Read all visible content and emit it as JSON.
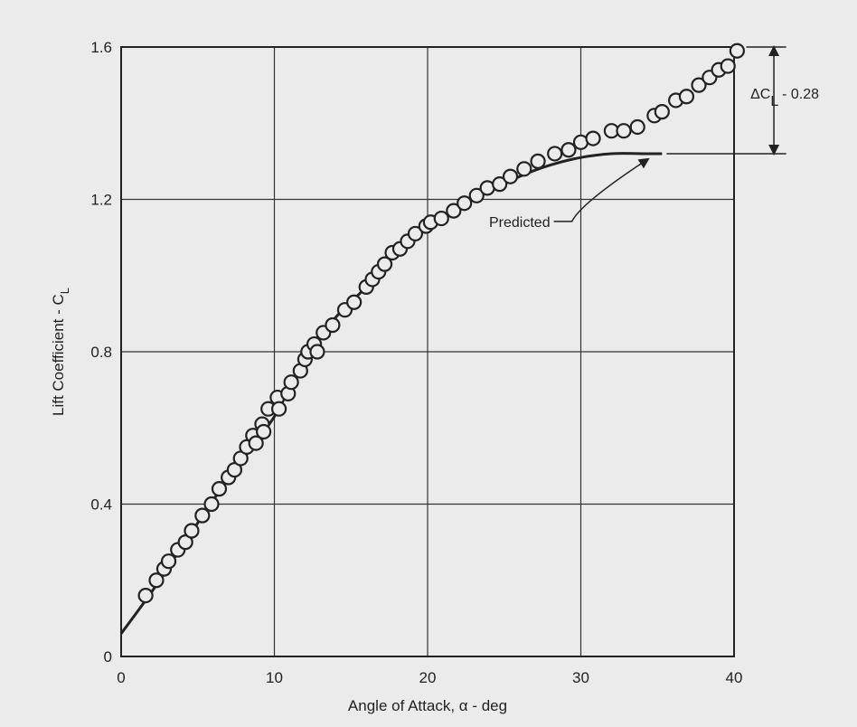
{
  "chart_data": {
    "type": "scatter",
    "title": "",
    "xlabel": "Angle of Attack, α - deg",
    "ylabel_main": "Lift Coefficient - C",
    "ylabel_sub": "L",
    "xlim": [
      0,
      40
    ],
    "ylim": [
      0,
      1.6
    ],
    "x_ticks": [
      0,
      10,
      20,
      30,
      40
    ],
    "x_tick_labels": [
      "0",
      "10",
      "20",
      "30",
      "40"
    ],
    "y_ticks": [
      0,
      0.4,
      0.8,
      1.2,
      1.6
    ],
    "y_tick_labels": [
      "0",
      "0.4",
      "0.8",
      "1.2",
      "1.6"
    ],
    "grid": true,
    "series": [
      {
        "marker": "open-circle",
        "color": "#222222",
        "points": [
          [
            1.6,
            0.16
          ],
          [
            2.3,
            0.2
          ],
          [
            2.8,
            0.23
          ],
          [
            3.1,
            0.25
          ],
          [
            3.7,
            0.28
          ],
          [
            4.2,
            0.3
          ],
          [
            4.6,
            0.33
          ],
          [
            5.3,
            0.37
          ],
          [
            5.9,
            0.4
          ],
          [
            6.4,
            0.44
          ],
          [
            7.0,
            0.47
          ],
          [
            7.4,
            0.49
          ],
          [
            7.8,
            0.52
          ],
          [
            8.2,
            0.55
          ],
          [
            8.6,
            0.58
          ],
          [
            8.8,
            0.56
          ],
          [
            9.2,
            0.61
          ],
          [
            9.3,
            0.59
          ],
          [
            9.6,
            0.65
          ],
          [
            10.2,
            0.68
          ],
          [
            10.3,
            0.65
          ],
          [
            10.9,
            0.69
          ],
          [
            11.1,
            0.72
          ],
          [
            11.7,
            0.75
          ],
          [
            12.0,
            0.78
          ],
          [
            12.2,
            0.8
          ],
          [
            12.6,
            0.82
          ],
          [
            12.8,
            0.8
          ],
          [
            13.2,
            0.85
          ],
          [
            13.8,
            0.87
          ],
          [
            14.6,
            0.91
          ],
          [
            15.2,
            0.93
          ],
          [
            16.0,
            0.97
          ],
          [
            16.4,
            0.99
          ],
          [
            16.8,
            1.01
          ],
          [
            17.2,
            1.03
          ],
          [
            17.7,
            1.06
          ],
          [
            18.2,
            1.07
          ],
          [
            18.7,
            1.09
          ],
          [
            19.2,
            1.11
          ],
          [
            19.9,
            1.13
          ],
          [
            20.2,
            1.14
          ],
          [
            20.9,
            1.15
          ],
          [
            21.7,
            1.17
          ],
          [
            22.4,
            1.19
          ],
          [
            23.2,
            1.21
          ],
          [
            23.9,
            1.23
          ],
          [
            24.7,
            1.24
          ],
          [
            25.4,
            1.26
          ],
          [
            26.3,
            1.28
          ],
          [
            27.2,
            1.3
          ],
          [
            28.3,
            1.32
          ],
          [
            29.2,
            1.33
          ],
          [
            30.0,
            1.35
          ],
          [
            30.8,
            1.36
          ],
          [
            32.0,
            1.38
          ],
          [
            32.8,
            1.38
          ],
          [
            33.7,
            1.39
          ],
          [
            34.8,
            1.42
          ],
          [
            35.3,
            1.43
          ],
          [
            36.2,
            1.46
          ],
          [
            36.9,
            1.47
          ],
          [
            37.7,
            1.5
          ],
          [
            38.4,
            1.52
          ],
          [
            39.0,
            1.54
          ],
          [
            39.6,
            1.55
          ],
          [
            40.2,
            1.59
          ]
        ]
      }
    ],
    "predicted_curve": {
      "label": "Predicted",
      "x": [
        0,
        2,
        4,
        6,
        8,
        10,
        12,
        14,
        16,
        18,
        20,
        22,
        24,
        26,
        28,
        30,
        32,
        34,
        35.3
      ],
      "y": [
        0.06,
        0.17,
        0.29,
        0.41,
        0.52,
        0.63,
        0.78,
        0.89,
        0.97,
        1.06,
        1.13,
        1.18,
        1.22,
        1.26,
        1.29,
        1.31,
        1.32,
        1.32,
        1.32
      ]
    },
    "flat_line": {
      "x": [
        35.6,
        43.4
      ],
      "y": [
        1.32,
        1.32
      ]
    },
    "top_line": {
      "x": [
        40.8,
        43.4
      ],
      "y": [
        1.6,
        1.6
      ]
    },
    "delta_arrow": {
      "x": 42.6,
      "from": 1.32,
      "to": 1.6
    },
    "delta_annotation": {
      "prefix": "ΔC",
      "sub": "L",
      "suffix": " - 0.28"
    },
    "predicted_label_anchor": {
      "x": 28.0,
      "y": 1.142
    }
  }
}
